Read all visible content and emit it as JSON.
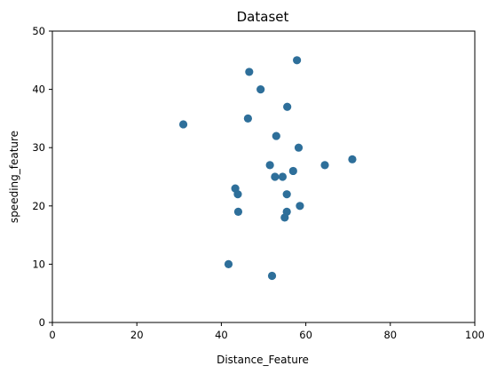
{
  "chart_data": {
    "type": "scatter",
    "title": "Dataset",
    "xlabel": "Distance_Feature",
    "ylabel": "speeding_feature",
    "xlim": [
      0,
      100
    ],
    "ylim": [
      0,
      50
    ],
    "xticks": [
      0,
      20,
      40,
      60,
      80,
      100
    ],
    "yticks": [
      0,
      10,
      20,
      30,
      40,
      50
    ],
    "grid": false,
    "color": "#2e6f9a",
    "points": [
      {
        "x": 31,
        "y": 34
      },
      {
        "x": 41.7,
        "y": 10
      },
      {
        "x": 43.3,
        "y": 23
      },
      {
        "x": 43.9,
        "y": 22
      },
      {
        "x": 44,
        "y": 19
      },
      {
        "x": 46.3,
        "y": 35
      },
      {
        "x": 46.6,
        "y": 43
      },
      {
        "x": 49.3,
        "y": 40
      },
      {
        "x": 51.5,
        "y": 27
      },
      {
        "x": 52,
        "y": 8
      },
      {
        "x": 52.7,
        "y": 25
      },
      {
        "x": 53,
        "y": 32
      },
      {
        "x": 54.5,
        "y": 25
      },
      {
        "x": 55,
        "y": 18
      },
      {
        "x": 55.5,
        "y": 19
      },
      {
        "x": 55.5,
        "y": 22
      },
      {
        "x": 55.6,
        "y": 37
      },
      {
        "x": 57,
        "y": 26
      },
      {
        "x": 57.9,
        "y": 45
      },
      {
        "x": 58.3,
        "y": 30
      },
      {
        "x": 58.6,
        "y": 20
      },
      {
        "x": 64.5,
        "y": 27
      },
      {
        "x": 71,
        "y": 28
      }
    ]
  }
}
